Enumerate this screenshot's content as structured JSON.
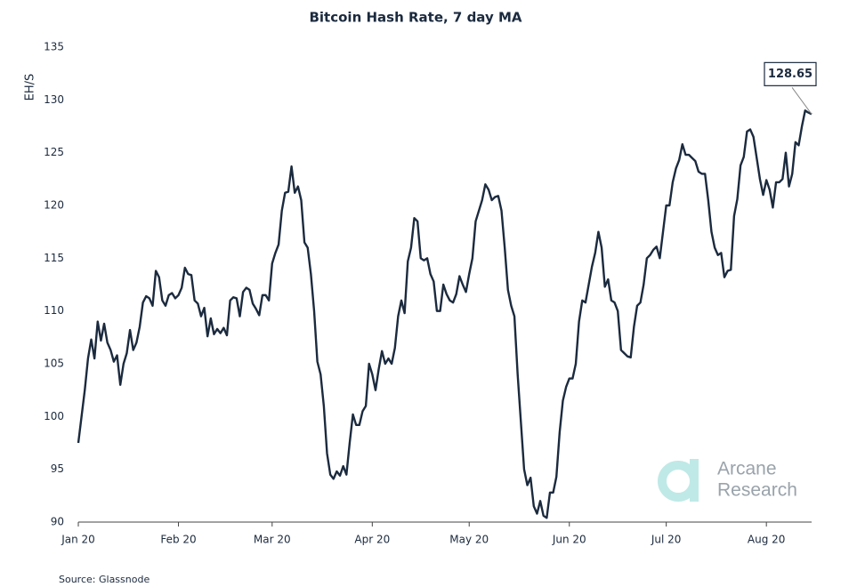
{
  "chart_data": {
    "type": "line",
    "title": "Bitcoin Hash Rate, 7 day MA",
    "ylabel": "EH/S",
    "source": "Source: Glassnode",
    "watermark": [
      "Arcane",
      "Research"
    ],
    "annotation": "128.65",
    "ylim": [
      90,
      135
    ],
    "yticks": [
      90,
      95,
      100,
      105,
      110,
      115,
      120,
      125,
      130,
      135
    ],
    "grid": false,
    "categories": [
      "Jan 20",
      null,
      null,
      null,
      null,
      null,
      null,
      null,
      null,
      null,
      null,
      null,
      null,
      null,
      null,
      null,
      null,
      null,
      null,
      null,
      null,
      null,
      null,
      null,
      null,
      null,
      null,
      null,
      null,
      null,
      null,
      "Feb 20",
      null,
      null,
      null,
      null,
      null,
      null,
      null,
      null,
      null,
      null,
      null,
      null,
      null,
      null,
      null,
      null,
      null,
      null,
      null,
      null,
      null,
      null,
      null,
      null,
      null,
      null,
      null,
      null,
      "Mar 20",
      null,
      null,
      null,
      null,
      null,
      null,
      null,
      null,
      null,
      null,
      null,
      null,
      null,
      null,
      null,
      null,
      null,
      null,
      null,
      null,
      null,
      null,
      null,
      null,
      null,
      null,
      null,
      null,
      null,
      null,
      "Apr 20",
      null,
      null,
      null,
      null,
      null,
      null,
      null,
      null,
      null,
      null,
      null,
      null,
      null,
      null,
      null,
      null,
      null,
      null,
      null,
      null,
      null,
      null,
      null,
      null,
      null,
      null,
      null,
      null,
      null,
      "May 20",
      null,
      null,
      null,
      null,
      null,
      null,
      null,
      null,
      null,
      null,
      null,
      null,
      null,
      null,
      null,
      null,
      null,
      null,
      null,
      null,
      null,
      null,
      null,
      null,
      null,
      null,
      null,
      null,
      null,
      null,
      "Jun 20",
      null,
      null,
      null,
      null,
      null,
      null,
      null,
      null,
      null,
      null,
      null,
      null,
      null,
      null,
      null,
      null,
      null,
      null,
      null,
      null,
      null,
      null,
      null,
      null,
      null,
      null,
      null,
      null,
      null,
      "Jul 20",
      null,
      null,
      null,
      null,
      null,
      null,
      null,
      null,
      null,
      null,
      null,
      null,
      null,
      null,
      null,
      null,
      null,
      null,
      null,
      null,
      null,
      null,
      null,
      null,
      null,
      null,
      null,
      null,
      null,
      null,
      "Aug 20",
      null,
      null,
      null,
      null,
      null,
      null,
      null,
      null,
      null,
      null,
      null,
      null,
      null,
      null
    ],
    "series": [
      {
        "name": "Hash Rate",
        "color": "#1b2a3e",
        "values": [
          97.5,
          100,
          102.5,
          105.5,
          107.3,
          105.5,
          109,
          107.2,
          108.8,
          107,
          106.3,
          105.2,
          105.8,
          103,
          105,
          106,
          108.2,
          106.3,
          107,
          108.5,
          110.8,
          111.4,
          111.2,
          110.5,
          113.8,
          113.2,
          111,
          110.5,
          111.5,
          111.7,
          111.2,
          111.5,
          112.2,
          114.1,
          113.5,
          113.4,
          111,
          110.7,
          109.5,
          110.3,
          107.6,
          109.3,
          107.8,
          108.3,
          107.9,
          108.4,
          107.7,
          111,
          111.3,
          111.2,
          109.5,
          111.8,
          112.2,
          112,
          110.7,
          110.2,
          109.6,
          111.5,
          111.5,
          111,
          114.5,
          115.5,
          116.3,
          119.5,
          121.2,
          121.3,
          123.7,
          121.2,
          121.8,
          120.5,
          116.5,
          116,
          113.5,
          110,
          105.2,
          104,
          101,
          96.5,
          94.5,
          94.1,
          94.8,
          94.4,
          95.3,
          94.5,
          97.5,
          100.2,
          99.2,
          99.2,
          100.5,
          101,
          105,
          104,
          102.5,
          104.5,
          106.2,
          105,
          105.5,
          105,
          106.5,
          109.5,
          111,
          109.8,
          114.7,
          116,
          118.8,
          118.5,
          115,
          114.8,
          115,
          113.5,
          112.8,
          110,
          110,
          112.5,
          111.6,
          111,
          110.8,
          111.6,
          113.3,
          112.5,
          111.8,
          113.5,
          115,
          118.5,
          119.5,
          120.5,
          122,
          121.5,
          120.5,
          120.8,
          120.9,
          119.5,
          116,
          112,
          110.5,
          109.5,
          104,
          99.5,
          95,
          93.5,
          94.2,
          91.5,
          90.8,
          92,
          90.6,
          90.4,
          92.8,
          92.8,
          94.3,
          98.5,
          101.5,
          102.8,
          103.6,
          103.6,
          105,
          109,
          111,
          110.8,
          112.5,
          114.2,
          115.5,
          117.5,
          116,
          112.3,
          113,
          111,
          110.8,
          110,
          106.3,
          106,
          105.7,
          105.6,
          108.5,
          110.5,
          110.8,
          112.5,
          115,
          115.3,
          115.8,
          116.1,
          115,
          117.5,
          120,
          120,
          122.2,
          123.5,
          124.3,
          125.8,
          124.8,
          124.8,
          124.5,
          124.2,
          123.2,
          123,
          123,
          120.5,
          117.5,
          116,
          115.3,
          115.5,
          113.2,
          113.8,
          113.9,
          119,
          120.6,
          123.8,
          124.6,
          127,
          127.2,
          126.5,
          124.5,
          122.5,
          121,
          122.4,
          121.5,
          119.8,
          122.2,
          122.2,
          122.5,
          125,
          121.8,
          123,
          126,
          125.7,
          127.5,
          129,
          128.8,
          128.65
        ]
      }
    ]
  }
}
